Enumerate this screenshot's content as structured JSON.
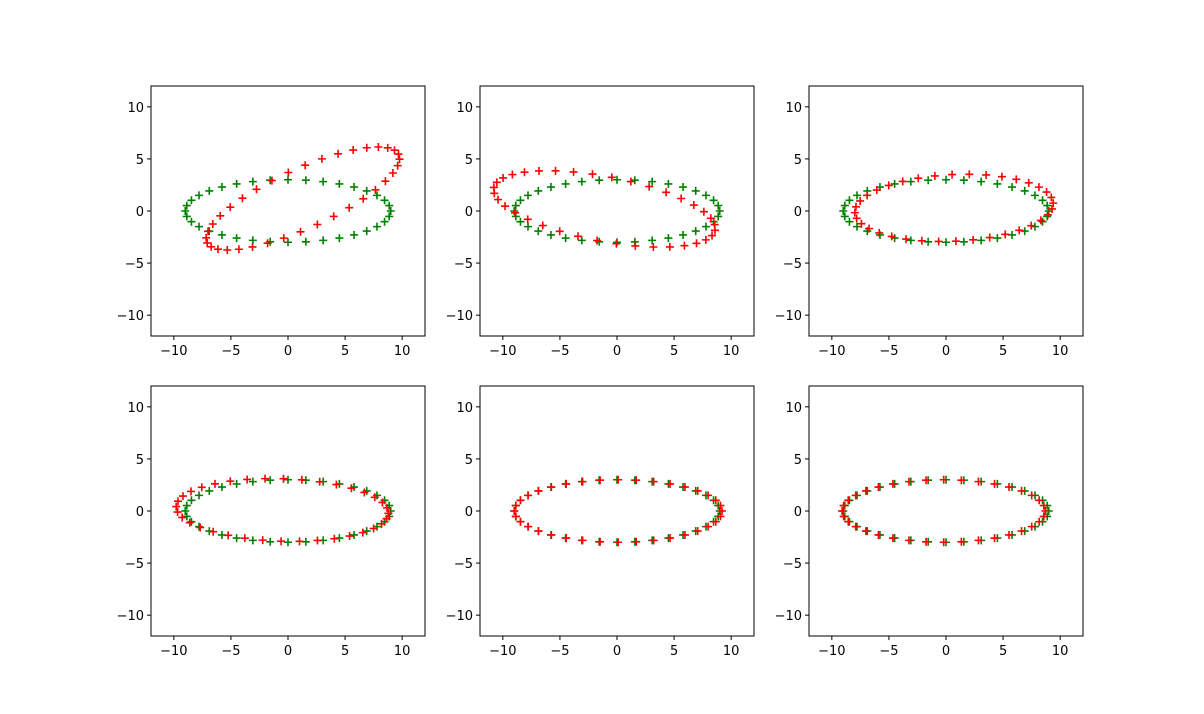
{
  "figure": {
    "grid": "2x3",
    "colors": {
      "ellipse": "#008000",
      "fitted": "#ff0000",
      "axes": "#000000",
      "background": "#ffffff"
    }
  },
  "chart_data": [
    {
      "type": "scatter",
      "marker": "+",
      "xlim": [
        -12,
        12
      ],
      "ylim": [
        -12,
        12
      ],
      "xticks": [
        -10,
        -5,
        0,
        5,
        10
      ],
      "yticks": [
        -10,
        -5,
        0,
        5,
        10
      ],
      "grid": false,
      "series": [
        {
          "color": "#008000",
          "ellipse": {
            "cx": 0,
            "cy": 0,
            "a": 9,
            "b": 3,
            "n": 36
          }
        },
        {
          "color": "#ff0000",
          "ellipse": {
            "cx": 1.3,
            "cy": 1.2,
            "a": 9.4,
            "b": 2.8,
            "n": 36,
            "angle_deg": 27
          }
        }
      ]
    },
    {
      "type": "scatter",
      "marker": "+",
      "xlim": [
        -12,
        12
      ],
      "ylim": [
        -12,
        12
      ],
      "xticks": [
        -10,
        -5,
        0,
        5,
        10
      ],
      "yticks": [
        -10,
        -5,
        0,
        5,
        10
      ],
      "grid": false,
      "series": [
        {
          "color": "#008000",
          "ellipse": {
            "cx": 0,
            "cy": 0,
            "a": 9,
            "b": 3,
            "n": 36
          }
        },
        {
          "color": "#ff0000",
          "ellipse": {
            "cx": -1.1,
            "cy": 0.2,
            "a": 9.9,
            "b": 3.1,
            "n": 36,
            "angle_deg": -12
          }
        }
      ]
    },
    {
      "type": "scatter",
      "marker": "+",
      "xlim": [
        -12,
        12
      ],
      "ylim": [
        -12,
        12
      ],
      "xticks": [
        -10,
        -5,
        0,
        5,
        10
      ],
      "yticks": [
        -10,
        -5,
        0,
        5,
        10
      ],
      "grid": false,
      "series": [
        {
          "color": "#008000",
          "ellipse": {
            "cx": 0,
            "cy": 0,
            "a": 9,
            "b": 3,
            "n": 36
          }
        },
        {
          "color": "#ff0000",
          "ellipse": {
            "cx": 0.7,
            "cy": 0.3,
            "a": 8.7,
            "b": 3.2,
            "n": 36,
            "angle_deg": 3
          }
        }
      ]
    },
    {
      "type": "scatter",
      "marker": "+",
      "xlim": [
        -12,
        12
      ],
      "ylim": [
        -12,
        12
      ],
      "xticks": [
        -10,
        -5,
        0,
        5,
        10
      ],
      "yticks": [
        -10,
        -5,
        0,
        5,
        10
      ],
      "grid": false,
      "series": [
        {
          "color": "#008000",
          "ellipse": {
            "cx": 0,
            "cy": 0,
            "a": 9,
            "b": 3,
            "n": 36
          }
        },
        {
          "color": "#ff0000",
          "ellipse": {
            "cx": -0.5,
            "cy": 0.1,
            "a": 9.3,
            "b": 3.0,
            "n": 36,
            "angle_deg": -2
          }
        }
      ]
    },
    {
      "type": "scatter",
      "marker": "+",
      "xlim": [
        -12,
        12
      ],
      "ylim": [
        -12,
        12
      ],
      "xticks": [
        -10,
        -5,
        0,
        5,
        10
      ],
      "yticks": [
        -10,
        -5,
        0,
        5,
        10
      ],
      "grid": false,
      "series": [
        {
          "color": "#008000",
          "ellipse": {
            "cx": 0,
            "cy": 0,
            "a": 9,
            "b": 3,
            "n": 36
          }
        },
        {
          "color": "#ff0000",
          "ellipse": {
            "cx": 0.1,
            "cy": 0,
            "a": 9.1,
            "b": 3.0,
            "n": 36,
            "angle_deg": 0
          }
        }
      ]
    },
    {
      "type": "scatter",
      "marker": "+",
      "xlim": [
        -12,
        12
      ],
      "ylim": [
        -12,
        12
      ],
      "xticks": [
        -10,
        -5,
        0,
        5,
        10
      ],
      "yticks": [
        -10,
        -5,
        0,
        5,
        10
      ],
      "grid": false,
      "series": [
        {
          "color": "#008000",
          "ellipse": {
            "cx": 0,
            "cy": 0,
            "a": 9,
            "b": 3,
            "n": 36
          }
        },
        {
          "color": "#ff0000",
          "ellipse": {
            "cx": -0.2,
            "cy": 0,
            "a": 8.9,
            "b": 3.0,
            "n": 36,
            "angle_deg": 0
          }
        }
      ]
    }
  ]
}
